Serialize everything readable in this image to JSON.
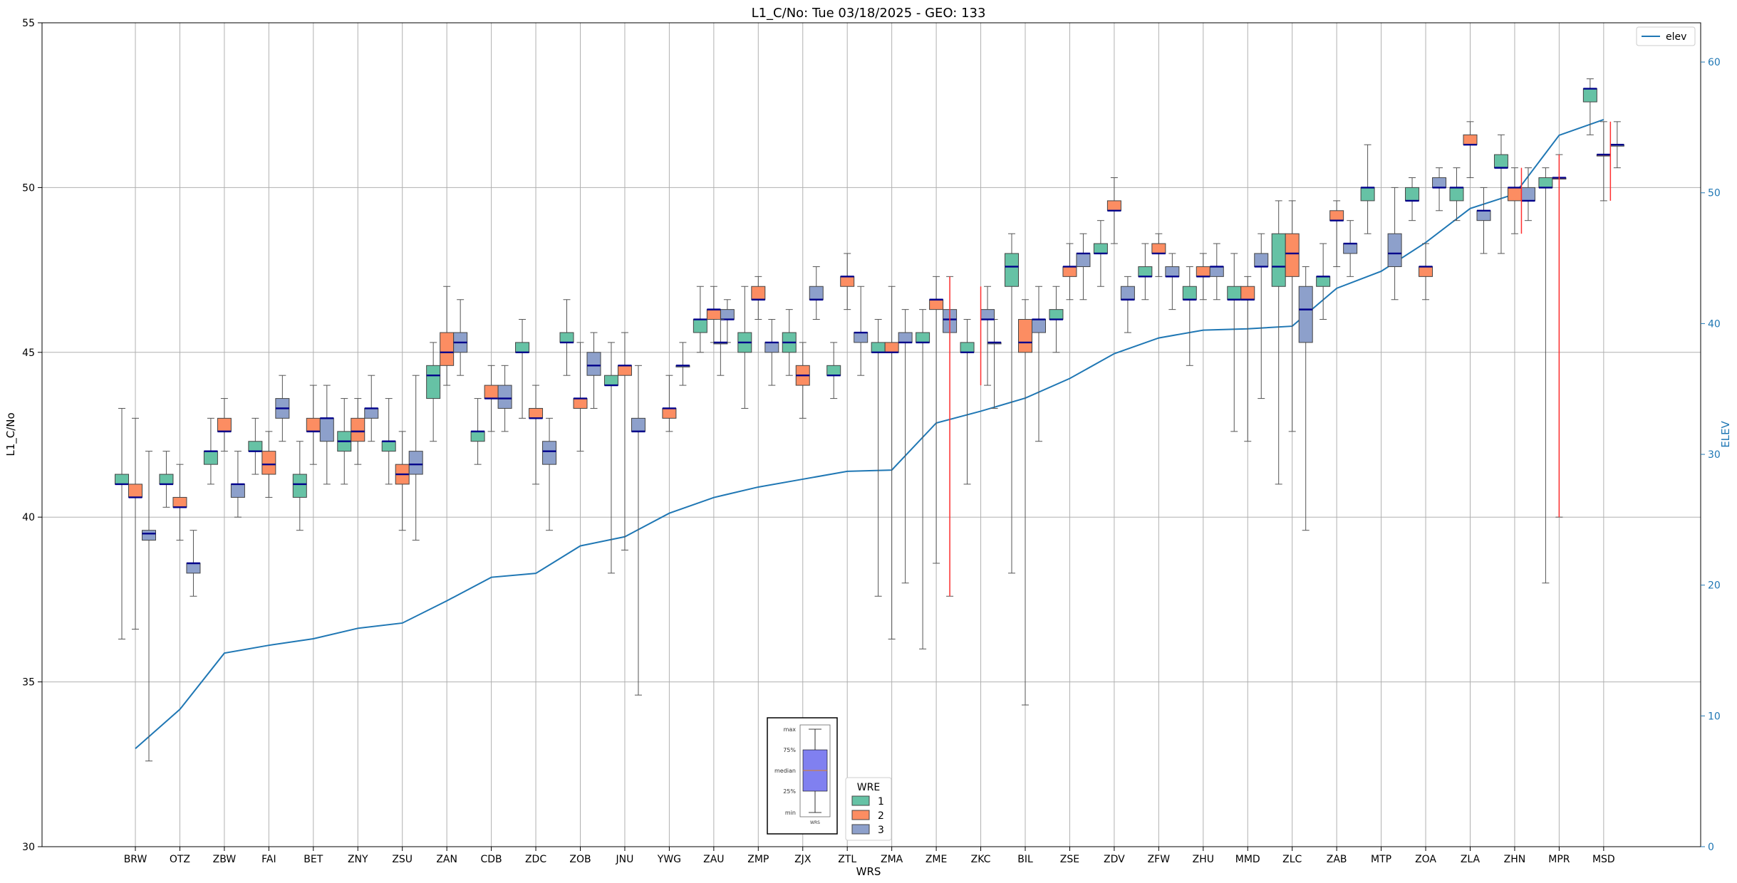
{
  "chart_data": {
    "type": "box",
    "title": "L1_C/No: Tue 03/18/2025 - GEO: 133",
    "xlabel": "WRS",
    "ylabel": "L1_C/No",
    "y2label": "ELEV",
    "ylim": [
      30,
      55
    ],
    "y2lim": [
      0,
      63
    ],
    "yticks": [
      30,
      35,
      40,
      45,
      50,
      55
    ],
    "y2ticks": [
      0,
      10,
      20,
      30,
      40,
      50,
      60
    ],
    "grid": true,
    "wrs": [
      "BRW",
      "OTZ",
      "ZBW",
      "FAI",
      "BET",
      "ZNY",
      "ZSU",
      "ZAN",
      "CDB",
      "ZDC",
      "ZOB",
      "JNU",
      "YWG",
      "ZAU",
      "ZMP",
      "ZJX",
      "ZTL",
      "ZMA",
      "ZME",
      "ZKC",
      "BIL",
      "ZSE",
      "ZDV",
      "ZFW",
      "ZHU",
      "MMD",
      "ZLC",
      "ZAB",
      "MTP",
      "ZOA",
      "ZLA",
      "ZHN",
      "MPR",
      "MSD"
    ],
    "wre_colors": {
      "1": "#66c2a5",
      "2": "#fc8d62",
      "3": "#8da0cb"
    },
    "elev": [
      7.5,
      10.5,
      14.8,
      15.4,
      15.9,
      16.7,
      17.1,
      18.8,
      20.6,
      20.9,
      23.0,
      23.7,
      25.5,
      26.7,
      27.5,
      28.1,
      28.7,
      28.8,
      32.4,
      33.3,
      34.3,
      35.8,
      37.7,
      38.9,
      39.5,
      39.6,
      39.8,
      42.7,
      44.0,
      46.2,
      48.8,
      49.9,
      54.4,
      55.6
    ],
    "boxes": [
      {
        "wrs": "BRW",
        "wre": 1,
        "min": 36.3,
        "q1": 41.0,
        "median": 41.0,
        "q3": 41.3,
        "max": 43.3
      },
      {
        "wrs": "BRW",
        "wre": 2,
        "min": 36.6,
        "q1": 40.6,
        "median": 40.6,
        "q3": 41.0,
        "max": 43.0
      },
      {
        "wrs": "BRW",
        "wre": 3,
        "min": 32.6,
        "q1": 39.3,
        "median": 39.5,
        "q3": 39.6,
        "max": 42.0
      },
      {
        "wrs": "OTZ",
        "wre": 1,
        "min": 40.3,
        "q1": 41.0,
        "median": 41.0,
        "q3": 41.3,
        "max": 42.0
      },
      {
        "wrs": "OTZ",
        "wre": 2,
        "min": 39.3,
        "q1": 40.3,
        "median": 40.3,
        "q3": 40.6,
        "max": 41.6
      },
      {
        "wrs": "OTZ",
        "wre": 3,
        "min": 37.6,
        "q1": 38.3,
        "median": 38.6,
        "q3": 38.6,
        "max": 39.6
      },
      {
        "wrs": "ZBW",
        "wre": 1,
        "min": 41.0,
        "q1": 41.6,
        "median": 42.0,
        "q3": 42.0,
        "max": 43.0
      },
      {
        "wrs": "ZBW",
        "wre": 2,
        "min": 42.0,
        "q1": 42.6,
        "median": 42.6,
        "q3": 43.0,
        "max": 43.6
      },
      {
        "wrs": "ZBW",
        "wre": 3,
        "min": 40.0,
        "q1": 40.6,
        "median": 41.0,
        "q3": 41.0,
        "max": 42.0
      },
      {
        "wrs": "FAI",
        "wre": 1,
        "min": 41.3,
        "q1": 42.0,
        "median": 42.0,
        "q3": 42.3,
        "max": 43.0
      },
      {
        "wrs": "FAI",
        "wre": 2,
        "min": 40.6,
        "q1": 41.3,
        "median": 41.6,
        "q3": 42.0,
        "max": 42.6
      },
      {
        "wrs": "FAI",
        "wre": 3,
        "min": 42.3,
        "q1": 43.0,
        "median": 43.3,
        "q3": 43.6,
        "max": 44.3
      },
      {
        "wrs": "BET",
        "wre": 1,
        "min": 39.6,
        "q1": 40.6,
        "median": 41.0,
        "q3": 41.3,
        "max": 42.3
      },
      {
        "wrs": "BET",
        "wre": 2,
        "min": 41.6,
        "q1": 42.6,
        "median": 42.6,
        "q3": 43.0,
        "max": 44.0
      },
      {
        "wrs": "BET",
        "wre": 3,
        "min": 41.0,
        "q1": 42.3,
        "median": 43.0,
        "q3": 43.0,
        "max": 44.0
      },
      {
        "wrs": "ZNY",
        "wre": 1,
        "min": 41.0,
        "q1": 42.0,
        "median": 42.3,
        "q3": 42.6,
        "max": 43.6
      },
      {
        "wrs": "ZNY",
        "wre": 2,
        "min": 41.6,
        "q1": 42.3,
        "median": 42.6,
        "q3": 43.0,
        "max": 43.6
      },
      {
        "wrs": "ZNY",
        "wre": 3,
        "min": 42.3,
        "q1": 43.0,
        "median": 43.3,
        "q3": 43.3,
        "max": 44.3
      },
      {
        "wrs": "ZSU",
        "wre": 1,
        "min": 41.0,
        "q1": 42.0,
        "median": 42.3,
        "q3": 42.3,
        "max": 43.6
      },
      {
        "wrs": "ZSU",
        "wre": 2,
        "min": 39.6,
        "q1": 41.0,
        "median": 41.3,
        "q3": 41.6,
        "max": 42.6
      },
      {
        "wrs": "ZSU",
        "wre": 3,
        "min": 39.3,
        "q1": 41.3,
        "median": 41.6,
        "q3": 42.0,
        "max": 44.3
      },
      {
        "wrs": "ZAN",
        "wre": 1,
        "min": 42.3,
        "q1": 43.6,
        "median": 44.3,
        "q3": 44.6,
        "max": 45.3
      },
      {
        "wrs": "ZAN",
        "wre": 2,
        "min": 44.0,
        "q1": 44.6,
        "median": 45.0,
        "q3": 45.6,
        "max": 47.0
      },
      {
        "wrs": "ZAN",
        "wre": 3,
        "min": 44.3,
        "q1": 45.0,
        "median": 45.3,
        "q3": 45.6,
        "max": 46.6
      },
      {
        "wrs": "CDB",
        "wre": 1,
        "min": 41.6,
        "q1": 42.3,
        "median": 42.6,
        "q3": 42.6,
        "max": 43.6
      },
      {
        "wrs": "CDB",
        "wre": 2,
        "min": 42.6,
        "q1": 43.6,
        "median": 43.6,
        "q3": 44.0,
        "max": 44.6
      },
      {
        "wrs": "CDB",
        "wre": 3,
        "min": 42.6,
        "q1": 43.3,
        "median": 43.6,
        "q3": 44.0,
        "max": 44.6
      },
      {
        "wrs": "ZDC",
        "wre": 1,
        "min": 43.0,
        "q1": 45.0,
        "median": 45.0,
        "q3": 45.3,
        "max": 46.0
      },
      {
        "wrs": "ZDC",
        "wre": 2,
        "min": 41.0,
        "q1": 43.0,
        "median": 43.0,
        "q3": 43.3,
        "max": 44.0
      },
      {
        "wrs": "ZDC",
        "wre": 3,
        "min": 39.6,
        "q1": 41.6,
        "median": 42.0,
        "q3": 42.3,
        "max": 43.0
      },
      {
        "wrs": "ZOB",
        "wre": 1,
        "min": 44.3,
        "q1": 45.3,
        "median": 45.3,
        "q3": 45.6,
        "max": 46.6
      },
      {
        "wrs": "ZOB",
        "wre": 2,
        "min": 42.0,
        "q1": 43.3,
        "median": 43.6,
        "q3": 43.6,
        "max": 45.3
      },
      {
        "wrs": "ZOB",
        "wre": 3,
        "min": 43.3,
        "q1": 44.3,
        "median": 44.6,
        "q3": 45.0,
        "max": 45.6
      },
      {
        "wrs": "JNU",
        "wre": 1,
        "min": 38.3,
        "q1": 44.0,
        "median": 44.0,
        "q3": 44.3,
        "max": 45.3
      },
      {
        "wrs": "JNU",
        "wre": 2,
        "min": 39.0,
        "q1": 44.3,
        "median": 44.6,
        "q3": 44.6,
        "max": 45.6
      },
      {
        "wrs": "JNU",
        "wre": 3,
        "min": 34.6,
        "q1": 42.6,
        "median": 42.6,
        "q3": 43.0,
        "max": 44.6
      },
      {
        "wrs": "YWG",
        "wre": 3,
        "min": 44.0,
        "q1": 44.6,
        "median": 44.6,
        "q3": 44.6,
        "max": 45.3
      },
      {
        "wrs": "YWG",
        "wre": 2,
        "min": 42.6,
        "q1": 43.0,
        "median": 43.3,
        "q3": 43.3,
        "max": 44.3
      },
      {
        "wrs": "ZAU",
        "wre": 3,
        "min": 45.3,
        "q1": 46.0,
        "median": 46.0,
        "q3": 46.3,
        "max": 46.6
      },
      {
        "wrs": "ZAU",
        "wre": 1,
        "min": 45.0,
        "q1": 45.6,
        "median": 46.0,
        "q3": 46.0,
        "max": 47.0
      },
      {
        "wrs": "ZAU",
        "wre": 2,
        "min": 45.3,
        "q1": 46.0,
        "median": 46.3,
        "q3": 46.3,
        "max": 47.0
      },
      {
        "wrs": "ZAU",
        "wre": 3,
        "min": 44.3,
        "q1": 45.3,
        "median": 45.3,
        "q3": 45.3,
        "max": 46.0
      },
      {
        "wrs": "ZMP",
        "wre": 1,
        "min": 43.3,
        "q1": 45.0,
        "median": 45.3,
        "q3": 45.6,
        "max": 47.0
      },
      {
        "wrs": "ZMP",
        "wre": 2,
        "min": 46.0,
        "q1": 46.6,
        "median": 46.6,
        "q3": 47.0,
        "max": 47.3
      },
      {
        "wrs": "ZMP",
        "wre": 3,
        "min": 44.0,
        "q1": 45.0,
        "median": 45.3,
        "q3": 45.3,
        "max": 46.0
      },
      {
        "wrs": "ZJX",
        "wre": 1,
        "min": 44.3,
        "q1": 45.0,
        "median": 45.3,
        "q3": 45.6,
        "max": 46.3
      },
      {
        "wrs": "ZJX",
        "wre": 2,
        "min": 43.0,
        "q1": 44.0,
        "median": 44.3,
        "q3": 44.6,
        "max": 45.3
      },
      {
        "wrs": "ZJX",
        "wre": 3,
        "min": 46.0,
        "q1": 46.6,
        "median": 46.6,
        "q3": 47.0,
        "max": 47.6
      },
      {
        "wrs": "ZTL",
        "wre": 1,
        "min": 43.6,
        "q1": 44.3,
        "median": 44.3,
        "q3": 44.6,
        "max": 45.3
      },
      {
        "wrs": "ZTL",
        "wre": 2,
        "min": 46.3,
        "q1": 47.0,
        "median": 47.3,
        "q3": 47.3,
        "max": 48.0
      },
      {
        "wrs": "ZTL",
        "wre": 3,
        "min": 44.3,
        "q1": 45.3,
        "median": 45.6,
        "q3": 45.6,
        "max": 47.0
      },
      {
        "wrs": "ZMA",
        "wre": 1,
        "min": 37.6,
        "q1": 45.0,
        "median": 45.0,
        "q3": 45.3,
        "max": 46.0
      },
      {
        "wrs": "ZMA",
        "wre": 2,
        "min": 36.3,
        "q1": 45.0,
        "median": 45.0,
        "q3": 45.3,
        "max": 47.0
      },
      {
        "wrs": "ZMA",
        "wre": 3,
        "min": 38.0,
        "q1": 45.3,
        "median": 45.3,
        "q3": 45.6,
        "max": 46.3
      },
      {
        "wrs": "ZME",
        "wre": 1,
        "min": 36.0,
        "q1": 45.3,
        "median": 45.3,
        "q3": 45.6,
        "max": 46.3
      },
      {
        "wrs": "ZME",
        "wre": 2,
        "min": 38.6,
        "q1": 46.3,
        "median": 46.6,
        "q3": 46.6,
        "max": 47.3
      },
      {
        "wrs": "ZME",
        "wre": 3,
        "min": 37.6,
        "q1": 45.6,
        "median": 46.0,
        "q3": 46.3,
        "max": 47.3
      },
      {
        "wrs": "ZKC",
        "wre": 1,
        "min": 41.0,
        "q1": 45.0,
        "median": 45.0,
        "q3": 45.3,
        "max": 46.0
      },
      {
        "wrs": "ZKC",
        "wre": 3,
        "min": 43.3,
        "q1": 45.3,
        "median": 45.3,
        "q3": 45.3,
        "max": 46.0
      },
      {
        "wrs": "ZKC",
        "wre": 3,
        "min": 44.0,
        "q1": 46.0,
        "median": 46.0,
        "q3": 46.3,
        "max": 47.0
      },
      {
        "wrs": "BIL",
        "wre": 1,
        "min": 38.3,
        "q1": 47.0,
        "median": 47.6,
        "q3": 48.0,
        "max": 48.6
      },
      {
        "wrs": "BIL",
        "wre": 2,
        "min": 34.3,
        "q1": 45.0,
        "median": 45.3,
        "q3": 46.0,
        "max": 46.6
      },
      {
        "wrs": "BIL",
        "wre": 3,
        "min": 42.3,
        "q1": 45.6,
        "median": 46.0,
        "q3": 46.0,
        "max": 47.0
      },
      {
        "wrs": "ZSE",
        "wre": 1,
        "min": 45.0,
        "q1": 46.0,
        "median": 46.0,
        "q3": 46.3,
        "max": 47.0
      },
      {
        "wrs": "ZSE",
        "wre": 2,
        "min": 46.6,
        "q1": 47.3,
        "median": 47.6,
        "q3": 47.6,
        "max": 48.3
      },
      {
        "wrs": "ZSE",
        "wre": 3,
        "min": 46.6,
        "q1": 47.6,
        "median": 48.0,
        "q3": 48.0,
        "max": 48.6
      },
      {
        "wrs": "ZDV",
        "wre": 1,
        "min": 47.0,
        "q1": 48.0,
        "median": 48.0,
        "q3": 48.3,
        "max": 49.0
      },
      {
        "wrs": "ZDV",
        "wre": 2,
        "min": 48.3,
        "q1": 49.3,
        "median": 49.3,
        "q3": 49.6,
        "max": 50.3
      },
      {
        "wrs": "ZDV",
        "wre": 3,
        "min": 45.6,
        "q1": 46.6,
        "median": 46.6,
        "q3": 47.0,
        "max": 47.3
      },
      {
        "wrs": "ZFW",
        "wre": 1,
        "min": 46.6,
        "q1": 47.3,
        "median": 47.3,
        "q3": 47.6,
        "max": 48.3
      },
      {
        "wrs": "ZFW",
        "wre": 2,
        "min": 47.3,
        "q1": 48.0,
        "median": 48.0,
        "q3": 48.3,
        "max": 48.6
      },
      {
        "wrs": "ZFW",
        "wre": 3,
        "min": 46.3,
        "q1": 47.3,
        "median": 47.3,
        "q3": 47.6,
        "max": 48.0
      },
      {
        "wrs": "ZHU",
        "wre": 1,
        "min": 44.6,
        "q1": 46.6,
        "median": 46.6,
        "q3": 47.0,
        "max": 47.6
      },
      {
        "wrs": "ZHU",
        "wre": 2,
        "min": 46.6,
        "q1": 47.3,
        "median": 47.3,
        "q3": 47.6,
        "max": 48.0
      },
      {
        "wrs": "ZHU",
        "wre": 3,
        "min": 46.6,
        "q1": 47.3,
        "median": 47.6,
        "q3": 47.6,
        "max": 48.3
      },
      {
        "wrs": "MMD",
        "wre": 1,
        "min": 42.6,
        "q1": 46.6,
        "median": 46.6,
        "q3": 47.0,
        "max": 48.0
      },
      {
        "wrs": "MMD",
        "wre": 2,
        "min": 42.3,
        "q1": 46.6,
        "median": 46.6,
        "q3": 47.0,
        "max": 47.3
      },
      {
        "wrs": "MMD",
        "wre": 3,
        "min": 43.6,
        "q1": 47.6,
        "median": 47.6,
        "q3": 48.0,
        "max": 48.6
      },
      {
        "wrs": "ZLC",
        "wre": 1,
        "min": 41.0,
        "q1": 47.0,
        "median": 47.6,
        "q3": 48.6,
        "max": 49.6
      },
      {
        "wrs": "ZLC",
        "wre": 2,
        "min": 42.6,
        "q1": 47.3,
        "median": 48.0,
        "q3": 48.6,
        "max": 49.6
      },
      {
        "wrs": "ZLC",
        "wre": 3,
        "min": 39.6,
        "q1": 45.3,
        "median": 46.3,
        "q3": 47.0,
        "max": 47.6
      },
      {
        "wrs": "ZAB",
        "wre": 1,
        "min": 46.0,
        "q1": 47.0,
        "median": 47.3,
        "q3": 47.3,
        "max": 48.3
      },
      {
        "wrs": "ZAB",
        "wre": 2,
        "min": 47.6,
        "q1": 49.0,
        "median": 49.0,
        "q3": 49.3,
        "max": 49.6
      },
      {
        "wrs": "ZAB",
        "wre": 3,
        "min": 47.3,
        "q1": 48.0,
        "median": 48.3,
        "q3": 48.3,
        "max": 49.0
      },
      {
        "wrs": "MTP",
        "wre": 1,
        "min": 48.6,
        "q1": 49.6,
        "median": 50.0,
        "q3": 50.0,
        "max": 51.3
      },
      {
        "wrs": "MTP",
        "wre": 3,
        "min": 46.6,
        "q1": 47.6,
        "median": 48.0,
        "q3": 48.6,
        "max": 50.0
      },
      {
        "wrs": "ZOA",
        "wre": 1,
        "min": 49.0,
        "q1": 49.6,
        "median": 49.6,
        "q3": 50.0,
        "max": 50.3
      },
      {
        "wrs": "ZOA",
        "wre": 2,
        "min": 46.6,
        "q1": 47.3,
        "median": 47.6,
        "q3": 47.6,
        "max": 48.3
      },
      {
        "wrs": "ZOA",
        "wre": 3,
        "min": 49.3,
        "q1": 50.0,
        "median": 50.0,
        "q3": 50.3,
        "max": 50.6
      },
      {
        "wrs": "ZLA",
        "wre": 1,
        "min": 49.0,
        "q1": 49.6,
        "median": 50.0,
        "q3": 50.0,
        "max": 50.6
      },
      {
        "wrs": "ZLA",
        "wre": 2,
        "min": 50.3,
        "q1": 51.3,
        "median": 51.3,
        "q3": 51.6,
        "max": 52.0
      },
      {
        "wrs": "ZLA",
        "wre": 3,
        "min": 48.0,
        "q1": 49.0,
        "median": 49.3,
        "q3": 49.3,
        "max": 50.0
      },
      {
        "wrs": "ZHN",
        "wre": 1,
        "min": 48.0,
        "q1": 50.6,
        "median": 50.6,
        "q3": 51.0,
        "max": 51.6
      },
      {
        "wrs": "ZHN",
        "wre": 2,
        "min": 48.6,
        "q1": 49.6,
        "median": 50.0,
        "q3": 50.0,
        "max": 50.6
      },
      {
        "wrs": "ZHN",
        "wre": 3,
        "min": 49.0,
        "q1": 49.6,
        "median": 49.6,
        "q3": 50.0,
        "max": 50.6
      },
      {
        "wrs": "MPR",
        "wre": 1,
        "min": 38.0,
        "q1": 50.0,
        "median": 50.0,
        "q3": 50.3,
        "max": 50.6
      },
      {
        "wrs": "MPR",
        "wre": 2,
        "min": 40.0,
        "q1": 50.3,
        "median": 50.3,
        "q3": 50.3,
        "max": 51.0
      },
      {
        "wrs": "MSD",
        "wre": 1,
        "min": 51.6,
        "q1": 52.6,
        "median": 53.0,
        "q3": 53.0,
        "max": 53.3
      },
      {
        "wrs": "MSD",
        "wre": 3,
        "min": 50.6,
        "q1": 51.3,
        "median": 51.3,
        "q3": 51.3,
        "max": 52.0
      },
      {
        "wrs": "MSD",
        "wre": 2,
        "min": 49.6,
        "q1": 51.0,
        "median": 51.0,
        "q3": 51.0,
        "max": 52.0
      }
    ],
    "legend_elev": "elev",
    "legend_wre_title": "WRE",
    "legend_wre_items": [
      "1",
      "2",
      "3"
    ],
    "inset_labels": [
      "max",
      "75%",
      "median",
      "25%",
      "min"
    ],
    "inset_xlabel": "WRS"
  }
}
